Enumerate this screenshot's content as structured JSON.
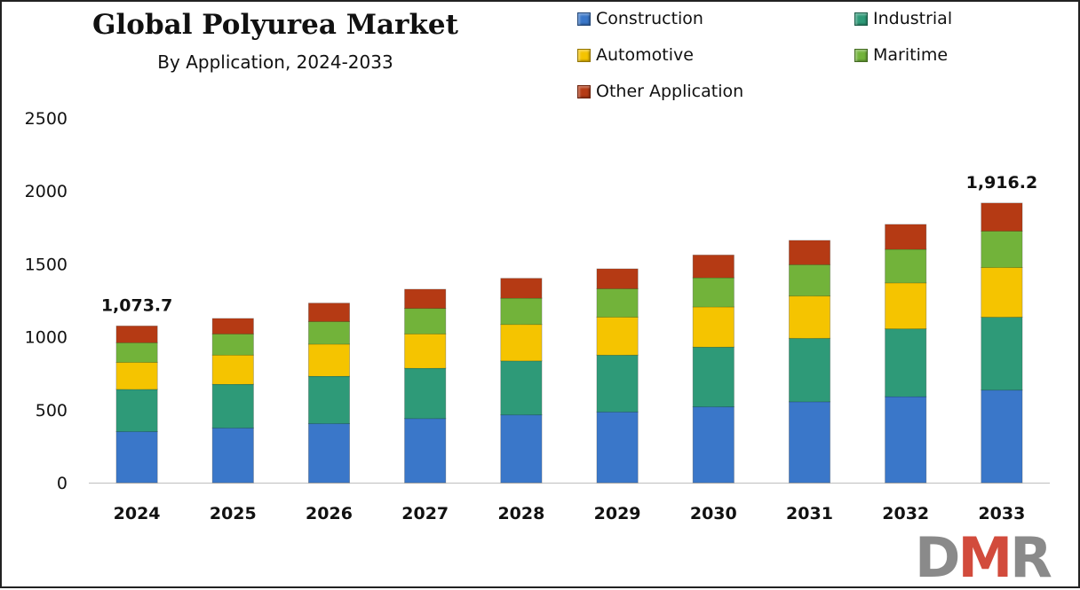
{
  "chart_data": {
    "type": "bar",
    "stacked": true,
    "title": "Global Polyurea Market",
    "subtitle": "By Application, 2024-2033",
    "categories": [
      "2024",
      "2025",
      "2026",
      "2027",
      "2028",
      "2029",
      "2030",
      "2031",
      "2032",
      "2033"
    ],
    "series": [
      {
        "name": "Construction",
        "color": "#3a77c9",
        "values": [
          350,
          375,
          405,
          440,
          465,
          485,
          520,
          555,
          590,
          635
        ]
      },
      {
        "name": "Industrial",
        "color": "#2e9a78",
        "values": [
          290,
          300,
          325,
          345,
          370,
          390,
          410,
          435,
          465,
          500
        ]
      },
      {
        "name": "Automotive",
        "color": "#f5c400",
        "values": [
          185,
          200,
          220,
          235,
          250,
          260,
          275,
          290,
          315,
          340
        ]
      },
      {
        "name": "Maritime",
        "color": "#72b33a",
        "values": [
          135,
          145,
          155,
          175,
          180,
          195,
          200,
          215,
          230,
          250
        ]
      },
      {
        "name": "Other Application",
        "color": "#b53a14",
        "values": [
          113.7,
          105,
          125,
          130,
          135,
          135,
          155,
          165,
          170,
          191.2
        ]
      }
    ],
    "data_labels": [
      {
        "category": "2024",
        "text": "1,073.7"
      },
      {
        "category": "2033",
        "text": "1,916.2"
      }
    ],
    "ylim": [
      0,
      2500
    ],
    "yticks": [
      "0",
      "500",
      "1000",
      "1500",
      "2000",
      "2500"
    ],
    "grid": false,
    "legend_position": "top-right"
  },
  "logo": {
    "d": "D",
    "m": "M",
    "r": "R"
  }
}
